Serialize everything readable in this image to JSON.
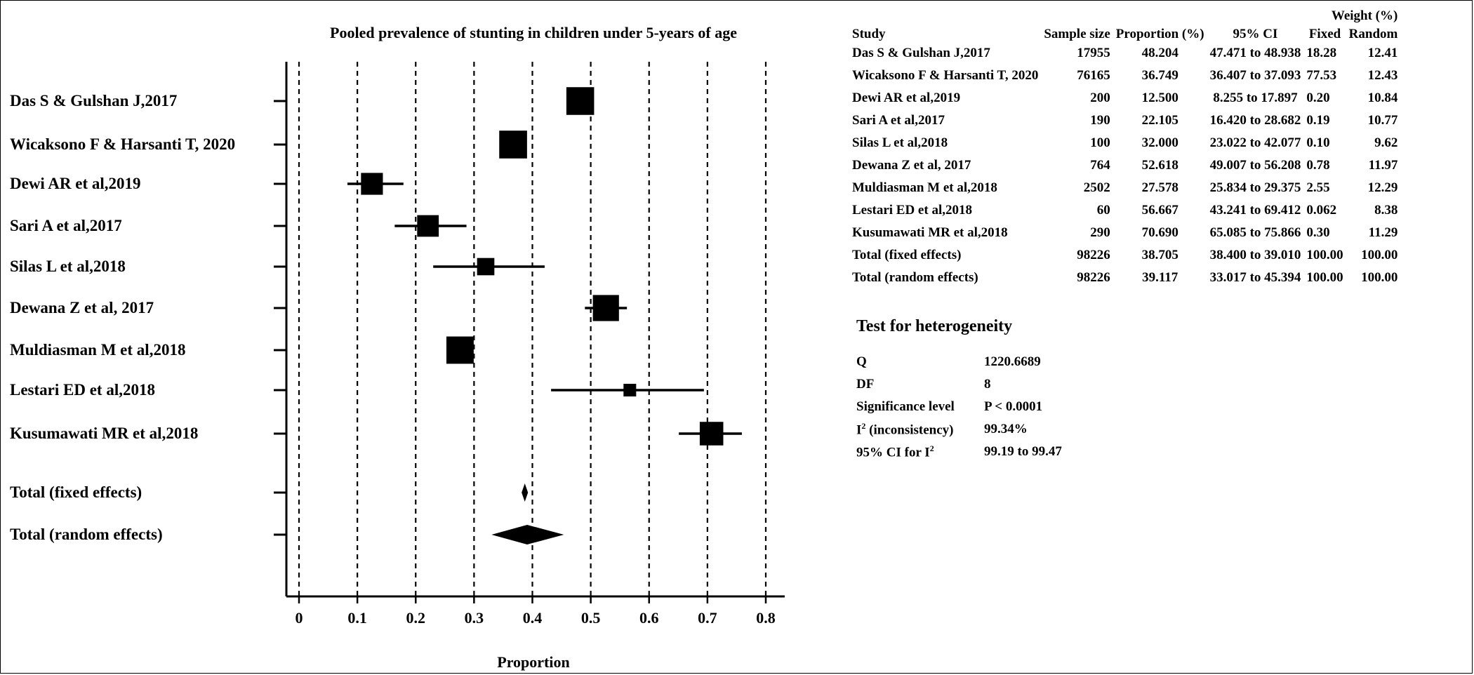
{
  "chart_data": {
    "type": "forest",
    "title": "Pooled prevalence of stunting  in children under 5-years of age",
    "xlabel": "Proportion",
    "xlim": [
      0,
      0.8
    ],
    "xticks": [
      "0",
      "0.1",
      "0.2",
      "0.3",
      "0.4",
      "0.5",
      "0.6",
      "0.7",
      "0.8"
    ],
    "grid": "vertical dashed",
    "studies": [
      {
        "label": "Das S & Gulshan J,2017",
        "proportion": 0.482,
        "ci": [
          0.475,
          0.489
        ],
        "weight_random": 12.41
      },
      {
        "label": "Wicaksono F & Harsanti T, 2020",
        "proportion": 0.367,
        "ci": [
          0.364,
          0.371
        ],
        "weight_random": 12.43
      },
      {
        "label": "Dewi AR et al,2019",
        "proportion": 0.125,
        "ci": [
          0.083,
          0.179
        ],
        "weight_random": 10.84
      },
      {
        "label": " Sari A et al,2017",
        "proportion": 0.221,
        "ci": [
          0.164,
          0.287
        ],
        "weight_random": 10.77
      },
      {
        "label": "Silas L et al,2018",
        "proportion": 0.32,
        "ci": [
          0.23,
          0.421
        ],
        "weight_random": 9.62
      },
      {
        "label": "Dewana Z et al, 2017",
        "proportion": 0.526,
        "ci": [
          0.49,
          0.562
        ],
        "weight_random": 11.97
      },
      {
        "label": "Muldiasman M et al,2018",
        "proportion": 0.276,
        "ci": [
          0.258,
          0.294
        ],
        "weight_random": 12.29
      },
      {
        "label": "Lestari ED et al,2018",
        "proportion": 0.567,
        "ci": [
          0.432,
          0.694
        ],
        "weight_random": 8.38
      },
      {
        "label": "Kusumawati MR et al,2018",
        "proportion": 0.707,
        "ci": [
          0.651,
          0.759
        ],
        "weight_random": 11.29
      }
    ],
    "totals": [
      {
        "label": "Total (fixed effects)",
        "proportion": 0.387,
        "ci": [
          0.384,
          0.39
        ]
      },
      {
        "label": "Total (random effects)",
        "proportion": 0.391,
        "ci": [
          0.33,
          0.454
        ]
      }
    ]
  },
  "table": {
    "weight_group": "Weight (%)",
    "headers": [
      "Study",
      "Sample size",
      "Proportion (%)",
      "95% CI",
      "Fixed",
      "Random"
    ],
    "rows": [
      [
        "Das S & Gulshan J,2017",
        "17955",
        "48.204",
        "47.471 to 48.938",
        "18.28",
        "12.41"
      ],
      [
        "Wicaksono F & Harsanti T, 2020",
        "76165",
        "36.749",
        "36.407 to 37.093",
        "77.53",
        "12.43"
      ],
      [
        "Dewi AR et al,2019",
        "200",
        "12.500",
        "8.255 to 17.897",
        "0.20",
        "10.84"
      ],
      [
        "Sari A et al,2017",
        "190",
        "22.105",
        "16.420 to 28.682",
        "0.19",
        "10.77"
      ],
      [
        "Silas L et al,2018",
        "100",
        "32.000",
        "23.022 to 42.077",
        "0.10",
        "9.62"
      ],
      [
        "Dewana Z et al, 2017",
        "764",
        "52.618",
        "49.007 to 56.208",
        "0.78",
        "11.97"
      ],
      [
        "Muldiasman M et al,2018",
        "2502",
        "27.578",
        "25.834 to 29.375",
        "2.55",
        "12.29"
      ],
      [
        "Lestari ED et al,2018",
        "60",
        "56.667",
        "43.241 to 69.412",
        "0.062",
        "8.38"
      ],
      [
        "Kusumawati MR et al,2018",
        "290",
        "70.690",
        "65.085 to 75.866",
        "0.30",
        "11.29"
      ],
      [
        "Total (fixed effects)",
        "98226",
        "38.705",
        "38.400 to 39.010",
        "100.00",
        "100.00"
      ],
      [
        "Total (random effects)",
        "98226",
        "39.117",
        "33.017 to 45.394",
        "100.00",
        "100.00"
      ]
    ]
  },
  "heterogeneity": {
    "title": "Test for heterogeneity",
    "rows": [
      {
        "label": "Q",
        "value": "1220.6689"
      },
      {
        "label": "DF",
        "value": "8"
      },
      {
        "label": "Significance level",
        "value": "P < 0.0001"
      },
      {
        "label": "I",
        "sup": "2",
        "suffix": " (inconsistency)",
        "value": "99.34%"
      },
      {
        "label": "95% CI for I",
        "sup": "2",
        "suffix": "",
        "value": "99.19 to 99.47"
      }
    ]
  }
}
